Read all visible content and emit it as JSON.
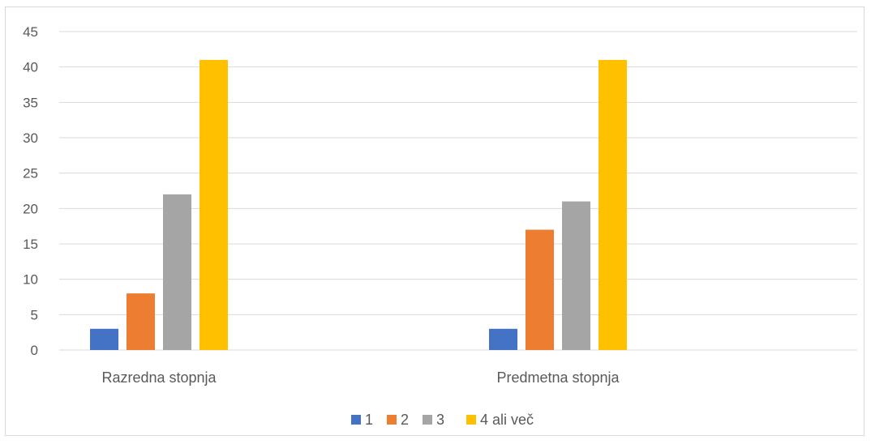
{
  "chart_data": {
    "type": "bar",
    "title": "",
    "xlabel": "",
    "ylabel": "",
    "categories": [
      "Razredna stopnja",
      "Predmetna stopnja"
    ],
    "series": [
      {
        "name": "1",
        "color": "#4472C4",
        "values": [
          3,
          3
        ]
      },
      {
        "name": "2",
        "color": "#ED7D31",
        "values": [
          8,
          17
        ]
      },
      {
        "name": "3",
        "color": "#A5A5A5",
        "values": [
          22,
          21
        ]
      },
      {
        "name": "4 ali več",
        "color": "#FFC000",
        "values": [
          41,
          41
        ]
      }
    ],
    "ylim": [
      0,
      45
    ],
    "yticks": [
      "0",
      "5",
      "10",
      "15",
      "20",
      "25",
      "30",
      "35",
      "40",
      "45"
    ],
    "grid": true,
    "legend_position": "bottom",
    "gridline_color": "#d9d9d9",
    "text_color": "#595959"
  }
}
